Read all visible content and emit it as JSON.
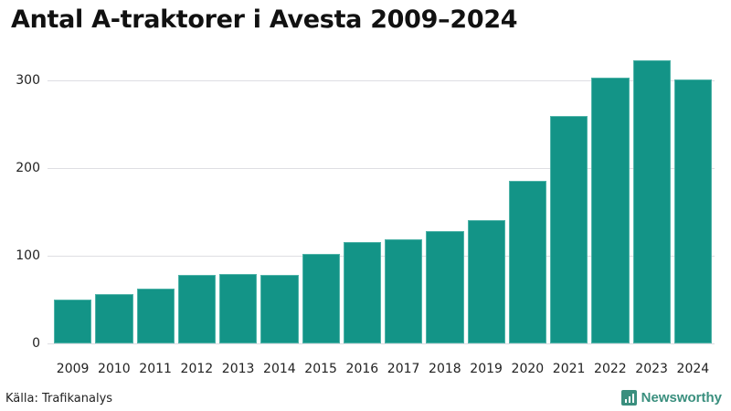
{
  "title": "Antal A-traktorer i Avesta 2009–2024",
  "source": "Källa: Trafikanalys",
  "brand": {
    "name": "Newsworthy",
    "color": "#3a8f7e"
  },
  "colors": {
    "bar": "#139487",
    "grid": "#dedee3"
  },
  "chart_data": {
    "type": "bar",
    "title": "Antal A-traktorer i Avesta 2009–2024",
    "xlabel": "",
    "ylabel": "",
    "categories": [
      "2009",
      "2010",
      "2011",
      "2012",
      "2013",
      "2014",
      "2015",
      "2016",
      "2017",
      "2018",
      "2019",
      "2020",
      "2021",
      "2022",
      "2023",
      "2024"
    ],
    "values": [
      50,
      56,
      63,
      78,
      79,
      78,
      102,
      116,
      119,
      128,
      141,
      185,
      259,
      303,
      323,
      301
    ],
    "ylim": [
      0,
      330
    ],
    "yticks": [
      0,
      100,
      200,
      300
    ],
    "grid": true,
    "legend": null,
    "annotations": []
  }
}
